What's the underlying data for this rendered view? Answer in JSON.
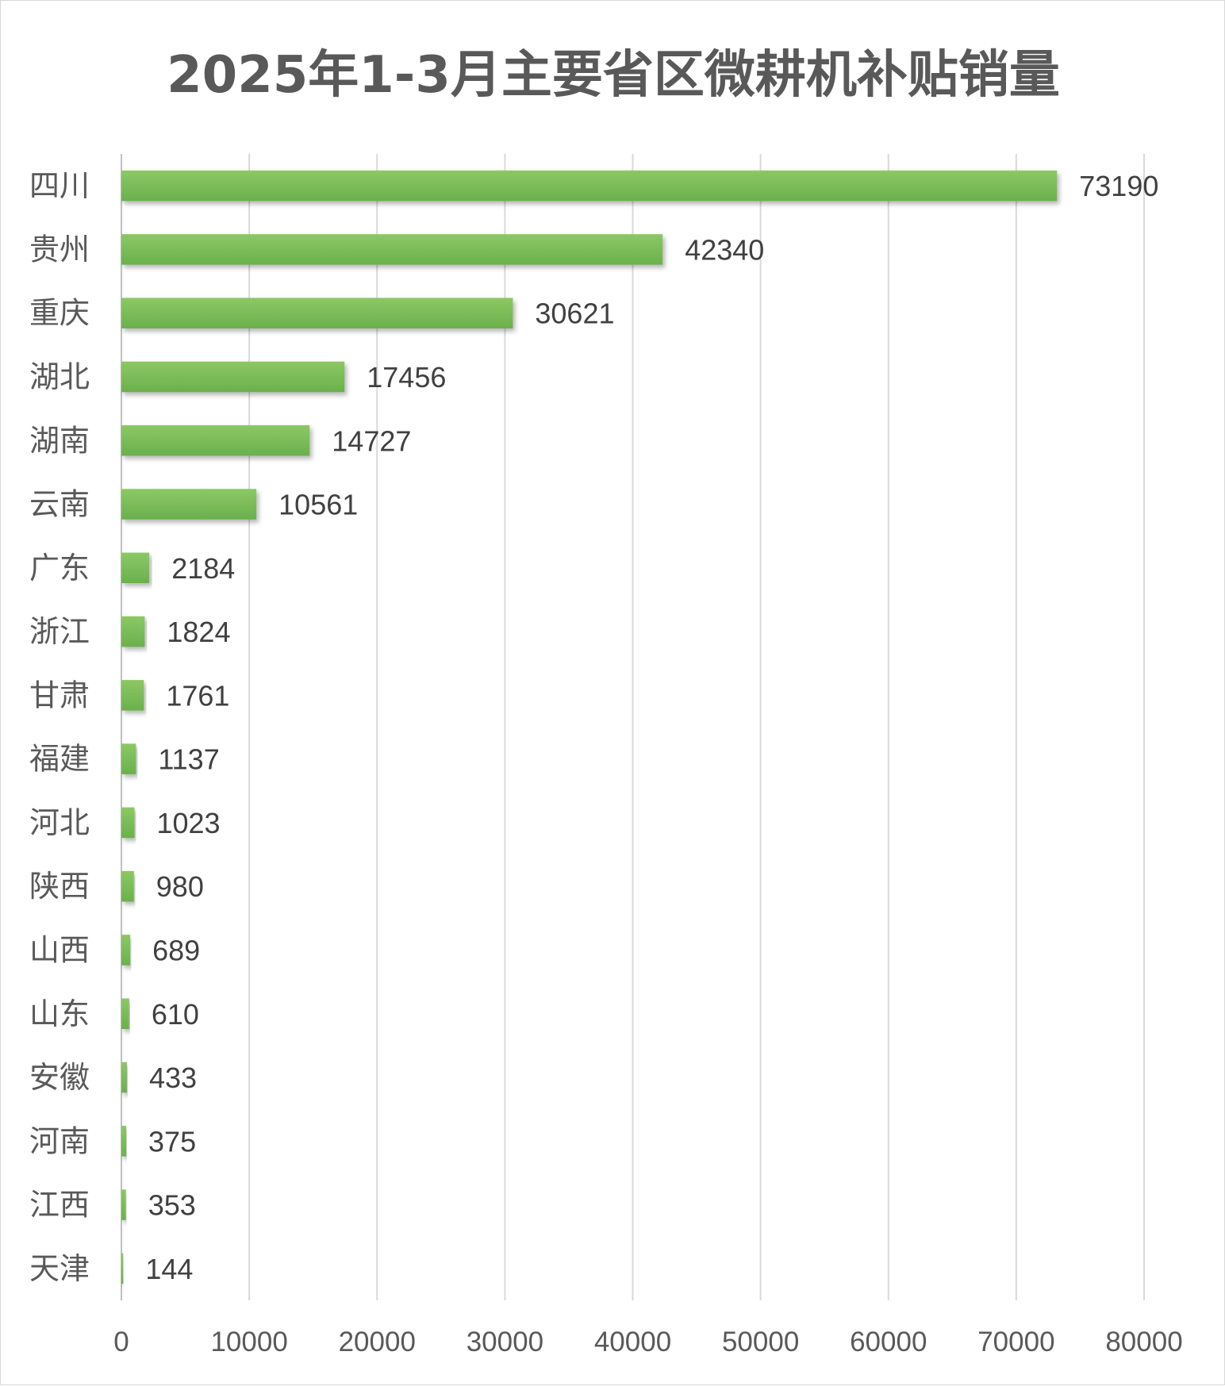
{
  "chart_data": {
    "type": "bar",
    "orientation": "horizontal",
    "title": "2025年1-3月主要省区微耕机补贴销量",
    "categories": [
      "四川",
      "贵州",
      "重庆",
      "湖北",
      "湖南",
      "云南",
      "广东",
      "浙江",
      "甘肃",
      "福建",
      "河北",
      "陕西",
      "山西",
      "山东",
      "安徽",
      "河南",
      "江西",
      "天津"
    ],
    "values": [
      73190,
      42340,
      30621,
      17456,
      14727,
      10561,
      2184,
      1824,
      1761,
      1137,
      1023,
      980,
      689,
      610,
      433,
      375,
      353,
      144
    ],
    "value_labels": [
      "73190",
      "42340",
      "30621",
      "17456",
      "14727",
      "10561",
      "2184",
      "1824",
      "1761",
      "1137",
      "1023",
      "980",
      "689",
      "610",
      "433",
      "375",
      "353",
      "144"
    ],
    "xlim": [
      0,
      80000
    ],
    "x_ticks": [
      0,
      10000,
      20000,
      30000,
      40000,
      50000,
      60000,
      70000,
      80000
    ],
    "x_tick_labels": [
      "0",
      "10000",
      "20000",
      "30000",
      "40000",
      "50000",
      "60000",
      "70000",
      "80000"
    ],
    "xlabel": "",
    "ylabel": "",
    "grid": "vertical",
    "legend": "none",
    "bar_color": "#6ab04c",
    "bar_color_light": "#8cc864",
    "grid_color": "#d9d9d9"
  }
}
